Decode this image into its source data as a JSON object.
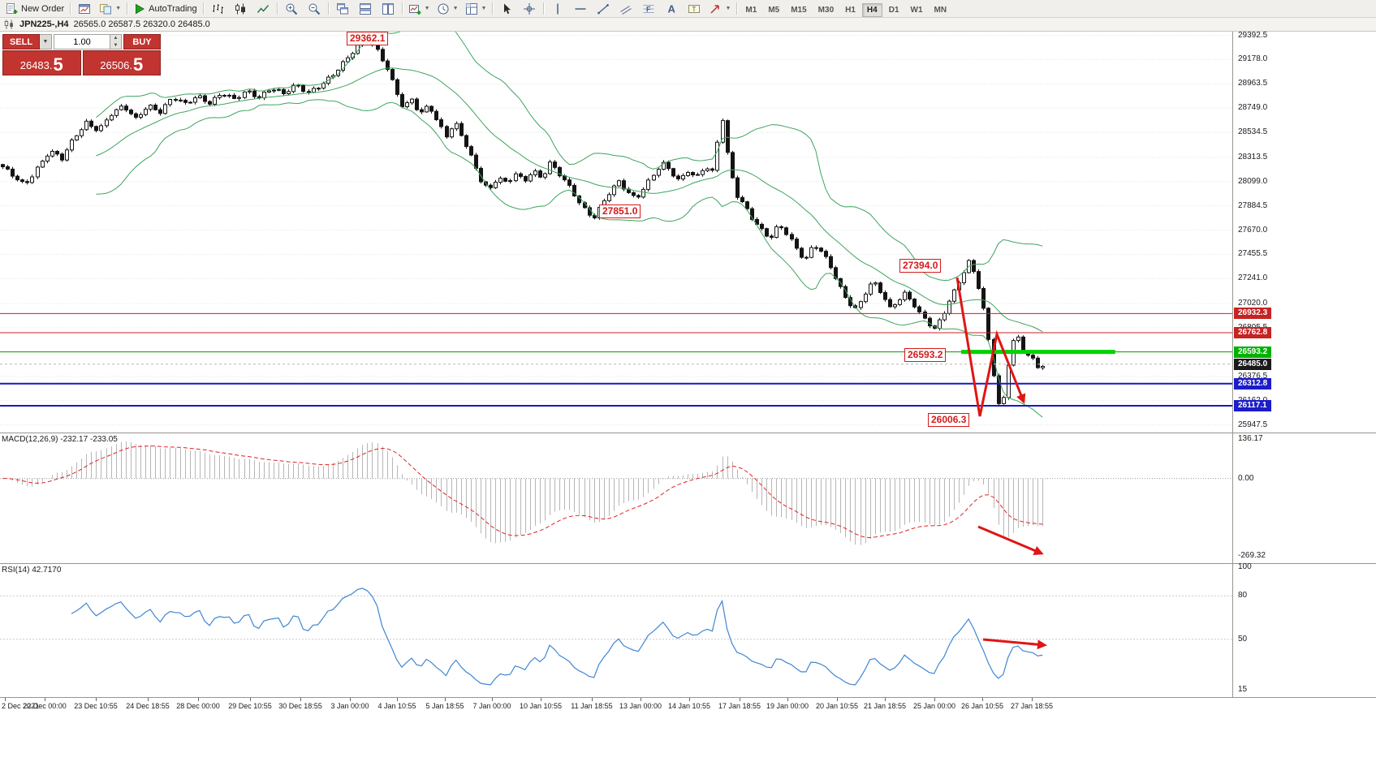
{
  "app": {
    "symbol_title": "JPN225-,H4",
    "ohlc_text": "26565.0 26587.5 26320.0 26485.0"
  },
  "toolbar": {
    "new_order_label": "New Order",
    "autotrading_label": "AutoTrading",
    "timeframes": [
      "M1",
      "M5",
      "M15",
      "M30",
      "H1",
      "H4",
      "D1",
      "W1",
      "MN"
    ],
    "active_timeframe": "H4",
    "icons": [
      "new-order-icon",
      "chart-window-icon",
      "profiles-icon",
      "autotrading-icon",
      "bar-chart-icon",
      "candlestick-chart-icon",
      "line-chart-icon",
      "zoom-in-icon",
      "zoom-out-icon",
      "cascade-windows-icon",
      "tile-windows-icon",
      "arrange-windows-icon",
      "new-chart-icon",
      "period-icon",
      "templates-icon",
      "cursor-icon",
      "crosshair-icon",
      "vertical-line-icon",
      "horizontal-line-icon",
      "trendline-icon",
      "equidistant-channel-icon",
      "fibonacci-icon",
      "text-icon",
      "label-icon",
      "arrow-tools-icon"
    ]
  },
  "trade_panel": {
    "sell_label": "SELL",
    "buy_label": "BUY",
    "volume_value": "1.00",
    "sell_price_small": "26483.",
    "sell_price_big": "5",
    "buy_price_small": "26506.",
    "buy_price_big": "5"
  },
  "price_axis": {
    "labels": [
      {
        "text": "29392.5",
        "price": 29392.5
      },
      {
        "text": "29178.0",
        "price": 29178.0
      },
      {
        "text": "28963.5",
        "price": 28963.5
      },
      {
        "text": "28749.0",
        "price": 28749.0
      },
      {
        "text": "28534.5",
        "price": 28534.5
      },
      {
        "text": "28313.5",
        "price": 28313.5
      },
      {
        "text": "28099.0",
        "price": 28099.0
      },
      {
        "text": "27884.5",
        "price": 27884.5
      },
      {
        "text": "27670.0",
        "price": 27670.0
      },
      {
        "text": "27455.5",
        "price": 27455.5
      },
      {
        "text": "27241.0",
        "price": 27241.0
      },
      {
        "text": "27020.0",
        "price": 27020.0
      },
      {
        "text": "26805.5",
        "price": 26805.5
      },
      {
        "text": "26376.5",
        "price": 26376.5
      },
      {
        "text": "26162.0",
        "price": 26162.0
      },
      {
        "text": "25947.5",
        "price": 25947.5
      }
    ],
    "badges": [
      {
        "text": "26932.3",
        "price": 26932.3,
        "color": "#c62323"
      },
      {
        "text": "26762.8",
        "price": 26762.8,
        "color": "#c62323"
      },
      {
        "text": "26593.2",
        "price": 26593.2,
        "color": "#00b200"
      },
      {
        "text": "26485.0",
        "price": 26485.0,
        "color": "#1a1a1a"
      },
      {
        "text": "26312.8",
        "price": 26312.8,
        "color": "#1c1cc9"
      },
      {
        "text": "26117.1",
        "price": 26117.1,
        "color": "#1c1cc9"
      }
    ]
  },
  "time_axis": {
    "labels": [
      {
        "text": "2 Dec 2021",
        "x": 0.004
      },
      {
        "text": "22 Dec 00:00",
        "x": 0.036
      },
      {
        "text": "23 Dec 10:55",
        "x": 0.078
      },
      {
        "text": "24 Dec 18:55",
        "x": 0.12
      },
      {
        "text": "28 Dec 00:00",
        "x": 0.161
      },
      {
        "text": "29 Dec 10:55",
        "x": 0.203
      },
      {
        "text": "30 Dec 18:55",
        "x": 0.244
      },
      {
        "text": "3 Jan 00:00",
        "x": 0.284
      },
      {
        "text": "4 Jan 10:55",
        "x": 0.322
      },
      {
        "text": "5 Jan 18:55",
        "x": 0.361
      },
      {
        "text": "7 Jan 00:00",
        "x": 0.399
      },
      {
        "text": "10 Jan 10:55",
        "x": 0.439
      },
      {
        "text": "11 Jan 18:55",
        "x": 0.48
      },
      {
        "text": "13 Jan 00:00",
        "x": 0.52
      },
      {
        "text": "14 Jan 10:55",
        "x": 0.559
      },
      {
        "text": "17 Jan 18:55",
        "x": 0.6
      },
      {
        "text": "19 Jan 00:00",
        "x": 0.639
      },
      {
        "text": "20 Jan 10:55",
        "x": 0.679
      },
      {
        "text": "21 Jan 18:55",
        "x": 0.718
      },
      {
        "text": "25 Jan 00:00",
        "x": 0.758
      },
      {
        "text": "26 Jan 10:55",
        "x": 0.797
      },
      {
        "text": "27 Jan 18:55",
        "x": 0.837
      }
    ]
  },
  "macd_panel": {
    "label": "MACD(12,26,9) -232.17 -233.05",
    "range": [
      -295,
      157
    ],
    "axis": [
      {
        "text": "136.17",
        "value": 136.17
      },
      {
        "text": "0.00",
        "value": 0
      },
      {
        "text": "-269.32",
        "value": -269.32
      }
    ]
  },
  "rsi_panel": {
    "label": "RSI(14) 42.7170",
    "range": [
      10,
      102
    ],
    "levels": [
      80,
      50
    ],
    "axis": [
      {
        "text": "100",
        "value": 100
      },
      {
        "text": "80",
        "value": 80
      },
      {
        "text": "50",
        "value": 50
      },
      {
        "text": "15",
        "value": 15
      }
    ]
  },
  "chart_data": {
    "type": "candlestick",
    "symbol": "JPN225-",
    "timeframe": "H4",
    "current": {
      "open": 26565.0,
      "high": 26587.5,
      "low": 26320.0,
      "close": 26485.0,
      "bid": 26483.5,
      "ask": 26506.5
    },
    "price_range": [
      25880,
      29425
    ],
    "candle_region": 0.848,
    "num_candles": 212,
    "price_path": [
      [
        0.0,
        28250
      ],
      [
        0.01,
        28150
      ],
      [
        0.02,
        28060
      ],
      [
        0.03,
        28220
      ],
      [
        0.04,
        28380
      ],
      [
        0.05,
        28300
      ],
      [
        0.06,
        28480
      ],
      [
        0.07,
        28620
      ],
      [
        0.08,
        28560
      ],
      [
        0.09,
        28700
      ],
      [
        0.1,
        28760
      ],
      [
        0.11,
        28650
      ],
      [
        0.12,
        28780
      ],
      [
        0.13,
        28720
      ],
      [
        0.14,
        28840
      ],
      [
        0.15,
        28780
      ],
      [
        0.16,
        28860
      ],
      [
        0.17,
        28800
      ],
      [
        0.18,
        28880
      ],
      [
        0.19,
        28820
      ],
      [
        0.2,
        28900
      ],
      [
        0.21,
        28850
      ],
      [
        0.22,
        28930
      ],
      [
        0.23,
        28870
      ],
      [
        0.24,
        28950
      ],
      [
        0.25,
        28890
      ],
      [
        0.26,
        28960
      ],
      [
        0.27,
        29040
      ],
      [
        0.28,
        29160
      ],
      [
        0.29,
        29300
      ],
      [
        0.297,
        29362
      ],
      [
        0.305,
        29280
      ],
      [
        0.313,
        29120
      ],
      [
        0.32,
        28920
      ],
      [
        0.327,
        28740
      ],
      [
        0.334,
        28830
      ],
      [
        0.341,
        28700
      ],
      [
        0.348,
        28790
      ],
      [
        0.355,
        28620
      ],
      [
        0.362,
        28500
      ],
      [
        0.369,
        28610
      ],
      [
        0.376,
        28470
      ],
      [
        0.383,
        28300
      ],
      [
        0.39,
        28120
      ],
      [
        0.397,
        28020
      ],
      [
        0.404,
        28140
      ],
      [
        0.411,
        28070
      ],
      [
        0.418,
        28170
      ],
      [
        0.425,
        28100
      ],
      [
        0.432,
        28210
      ],
      [
        0.439,
        28130
      ],
      [
        0.446,
        28260
      ],
      [
        0.453,
        28170
      ],
      [
        0.46,
        28080
      ],
      [
        0.467,
        27970
      ],
      [
        0.474,
        27860
      ],
      [
        0.481,
        27780
      ],
      [
        0.488,
        27890
      ],
      [
        0.495,
        28010
      ],
      [
        0.502,
        28090
      ],
      [
        0.509,
        28010
      ],
      [
        0.516,
        27950
      ],
      [
        0.523,
        28060
      ],
      [
        0.53,
        28160
      ],
      [
        0.537,
        28260
      ],
      [
        0.544,
        28180
      ],
      [
        0.551,
        28100
      ],
      [
        0.558,
        28200
      ],
      [
        0.565,
        28140
      ],
      [
        0.572,
        28240
      ],
      [
        0.579,
        28170
      ],
      [
        0.585,
        28720
      ],
      [
        0.591,
        28260
      ],
      [
        0.597,
        27990
      ],
      [
        0.604,
        27890
      ],
      [
        0.611,
        27770
      ],
      [
        0.618,
        27670
      ],
      [
        0.625,
        27590
      ],
      [
        0.632,
        27710
      ],
      [
        0.639,
        27630
      ],
      [
        0.646,
        27510
      ],
      [
        0.653,
        27410
      ],
      [
        0.66,
        27550
      ],
      [
        0.667,
        27470
      ],
      [
        0.674,
        27340
      ],
      [
        0.681,
        27170
      ],
      [
        0.688,
        27040
      ],
      [
        0.695,
        26970
      ],
      [
        0.701,
        27110
      ],
      [
        0.708,
        27220
      ],
      [
        0.715,
        27110
      ],
      [
        0.722,
        26970
      ],
      [
        0.728,
        27040
      ],
      [
        0.734,
        27110
      ],
      [
        0.74,
        27050
      ],
      [
        0.746,
        26940
      ],
      [
        0.752,
        26860
      ],
      [
        0.758,
        26790
      ],
      [
        0.764,
        26890
      ],
      [
        0.77,
        27040
      ],
      [
        0.776,
        27170
      ],
      [
        0.781,
        27290
      ],
      [
        0.786,
        27394
      ],
      [
        0.791,
        27290
      ],
      [
        0.796,
        27090
      ],
      [
        0.8,
        26840
      ],
      [
        0.804,
        26540
      ],
      [
        0.808,
        26240
      ],
      [
        0.812,
        26006
      ],
      [
        0.816,
        26340
      ],
      [
        0.82,
        26640
      ],
      [
        0.824,
        26762
      ],
      [
        0.828,
        26670
      ],
      [
        0.832,
        26550
      ],
      [
        0.836,
        26610
      ],
      [
        0.84,
        26440
      ],
      [
        0.848,
        26485
      ]
    ],
    "price_labels": [
      {
        "text": "29362.1",
        "x": 0.281,
        "price": 29360
      },
      {
        "text": "27851.0",
        "x": 0.486,
        "price": 27830
      },
      {
        "text": "27394.0",
        "x": 0.73,
        "price": 27350
      },
      {
        "text": "26593.2",
        "x": 0.734,
        "price": 26560
      },
      {
        "text": "26006.3",
        "x": 0.753,
        "price": 25985
      }
    ],
    "horizontal_lines": [
      {
        "price": 26932.3,
        "color": "#cc1f1f",
        "width": 1,
        "dash": null
      },
      {
        "price": 26762.8,
        "color": "#cc1f1f",
        "width": 1,
        "dash": null
      },
      {
        "price": 26593.2,
        "color": "#009900",
        "width": 1,
        "dash": null
      },
      {
        "price": 26485.0,
        "color": "#b5b5b5",
        "width": 1,
        "dash": "3 3"
      },
      {
        "price": 26312.8,
        "color": "#1717cc",
        "width": 2,
        "dash": null
      },
      {
        "price": 26117.1,
        "color": "#1717cc",
        "width": 2,
        "dash": null
      }
    ],
    "green_segment": {
      "price": 26593.2,
      "x1": 0.78,
      "x2": 0.905,
      "color": "#00d300",
      "width": 5
    },
    "arrows": {
      "main": [
        [
          0.777,
          27250
        ],
        [
          0.795,
          26020
        ],
        [
          0.809,
          26750
        ],
        [
          0.831,
          26150
        ]
      ],
      "macd": [
        [
          0.794,
          -168
        ],
        [
          0.845,
          -261
        ]
      ],
      "rsi": [
        [
          0.798,
          50
        ],
        [
          0.848,
          46
        ]
      ]
    },
    "indicator_colors": {
      "bands": "#3fa45e",
      "candle_outline": "#141414",
      "candle_up": "#ffffff",
      "candle_down": "#141414",
      "macd_hist": "#b6b6b6",
      "macd_signal": "#e02222",
      "rsi_line": "#3f86d2",
      "annotation": "#e01515"
    }
  }
}
